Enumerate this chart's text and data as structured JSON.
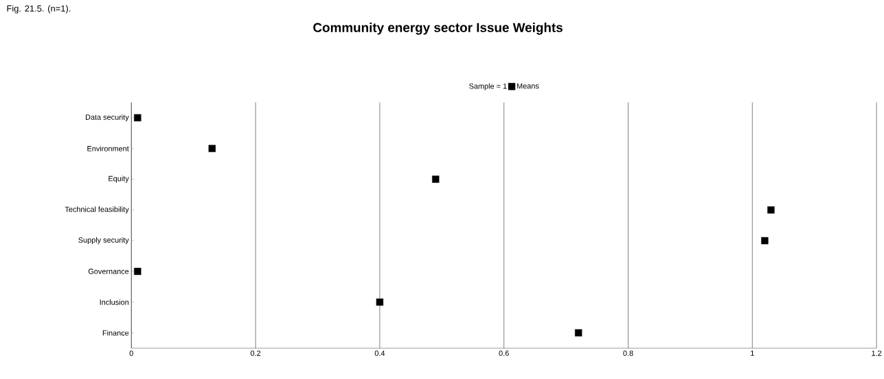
{
  "chart_data": {
    "type": "scatter",
    "title": "Community energy sector Issue Weights",
    "annotations": [
      "Fig. 21.5. (n=1)."
    ],
    "legend_title": "Sample = 1",
    "orientation": "horizontal",
    "categories": [
      "Data security",
      "Environment",
      "Equity",
      "Technical feasibility",
      "Supply security",
      "Governance",
      "Inclusion",
      "Finance"
    ],
    "series": [
      {
        "name": "Means",
        "color": "#000000",
        "values": [
          0.01,
          0.13,
          0.49,
          1.03,
          1.02,
          0.01,
          0.4,
          0.72
        ]
      }
    ],
    "xlim": [
      0,
      1.2
    ],
    "xticks": [
      0,
      0.2,
      0.4,
      0.6,
      0.8,
      1,
      1.2
    ],
    "grid": "x",
    "legend": "top",
    "marker": "square"
  }
}
